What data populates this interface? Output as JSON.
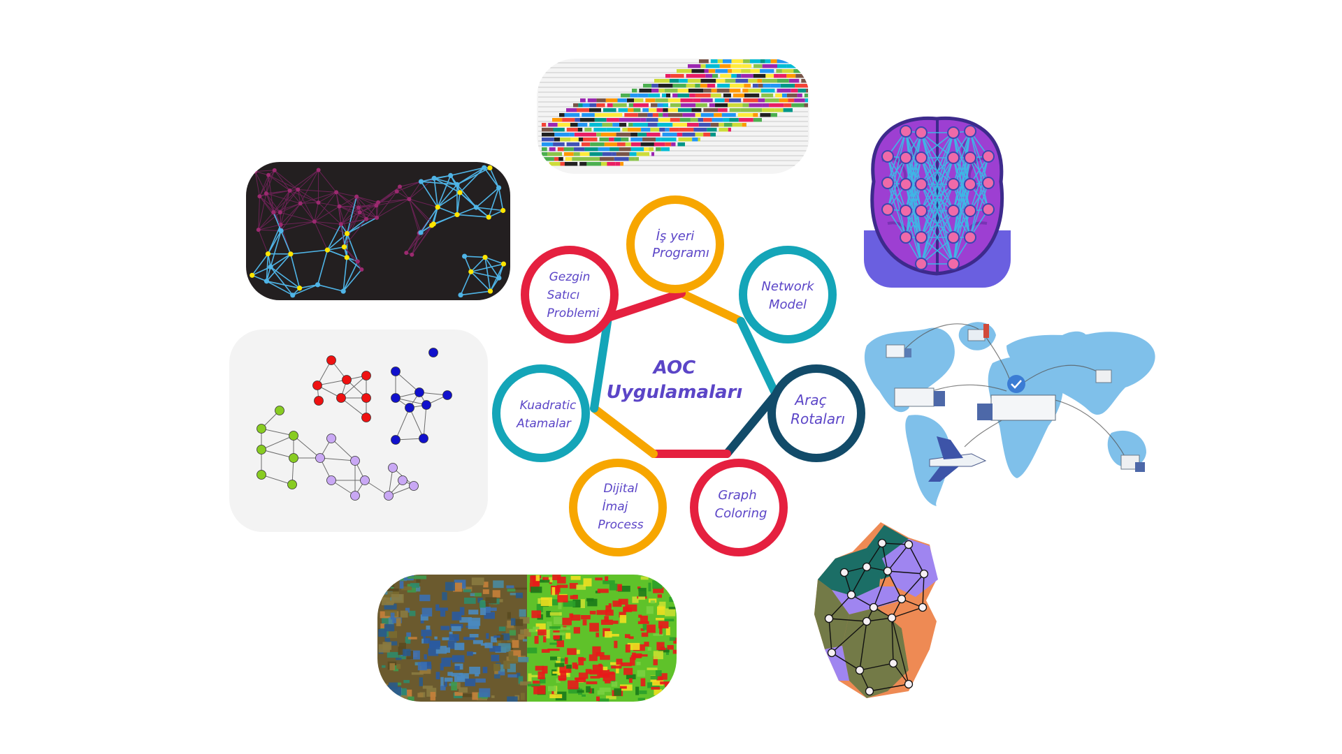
{
  "center_title": {
    "line1": "AOC",
    "line2": "Uygulamaları"
  },
  "applications": [
    {
      "line1": "İş yeri",
      "line2": "Programı",
      "color": "#f7a600"
    },
    {
      "line1": "Network",
      "line2": "Model",
      "color": "#14a5b8"
    },
    {
      "line1": "Araç",
      "line2": "Rotaları",
      "color": "#124b69"
    },
    {
      "line1": "Graph",
      "line2": "Coloring",
      "color": "#e5203f"
    },
    {
      "line1": "Dijital",
      "line2": "İmaj",
      "line3": "Process",
      "color": "#f7a600"
    },
    {
      "line1": "Kuadratic",
      "line2": "Atamalar",
      "color": "#14a5b8"
    },
    {
      "line1": "Gezgin",
      "line2": "Satıcı",
      "line3": "Problemi",
      "color": "#e5203f"
    }
  ],
  "illustrations": [
    "gantt-chart-image",
    "neural-network-brain-image",
    "world-logistics-map-image",
    "germany-graph-map-image",
    "satellite-segmentation-image",
    "colored-graph-image",
    "network-mesh-image"
  ],
  "colors": {
    "accent_text": "#5b45c7",
    "orange": "#f7a600",
    "teal": "#14a5b8",
    "navy": "#124b69",
    "red": "#e5203f"
  }
}
